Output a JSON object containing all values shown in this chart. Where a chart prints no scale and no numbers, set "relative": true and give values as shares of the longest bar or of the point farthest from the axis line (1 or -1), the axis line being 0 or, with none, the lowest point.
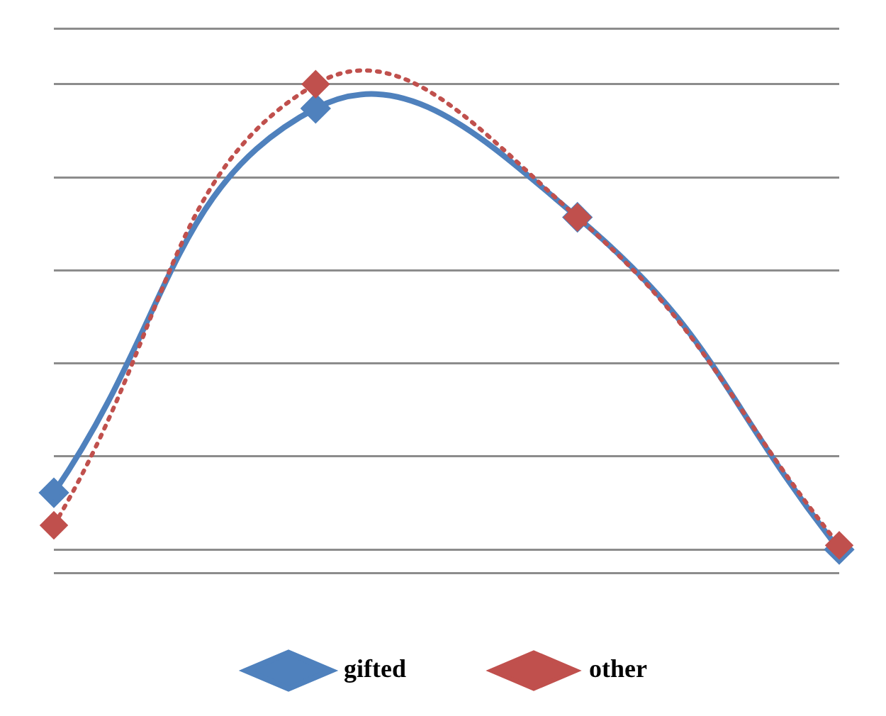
{
  "chart_data": {
    "type": "line",
    "relative": true,
    "categories": [
      null,
      null,
      null,
      null
    ],
    "grid": "y",
    "legend": "bottom",
    "marker": "diamond",
    "series": [
      {
        "name": "gifted",
        "color": "#4f81bd",
        "values": [
          0.122,
          0.948,
          0.714,
          0
        ],
        "line_style": "solid"
      },
      {
        "name": "other",
        "color": "#c0504d",
        "values": [
          0.052,
          1,
          0.714,
          0.009
        ],
        "line_style": "dotted"
      }
    ]
  }
}
